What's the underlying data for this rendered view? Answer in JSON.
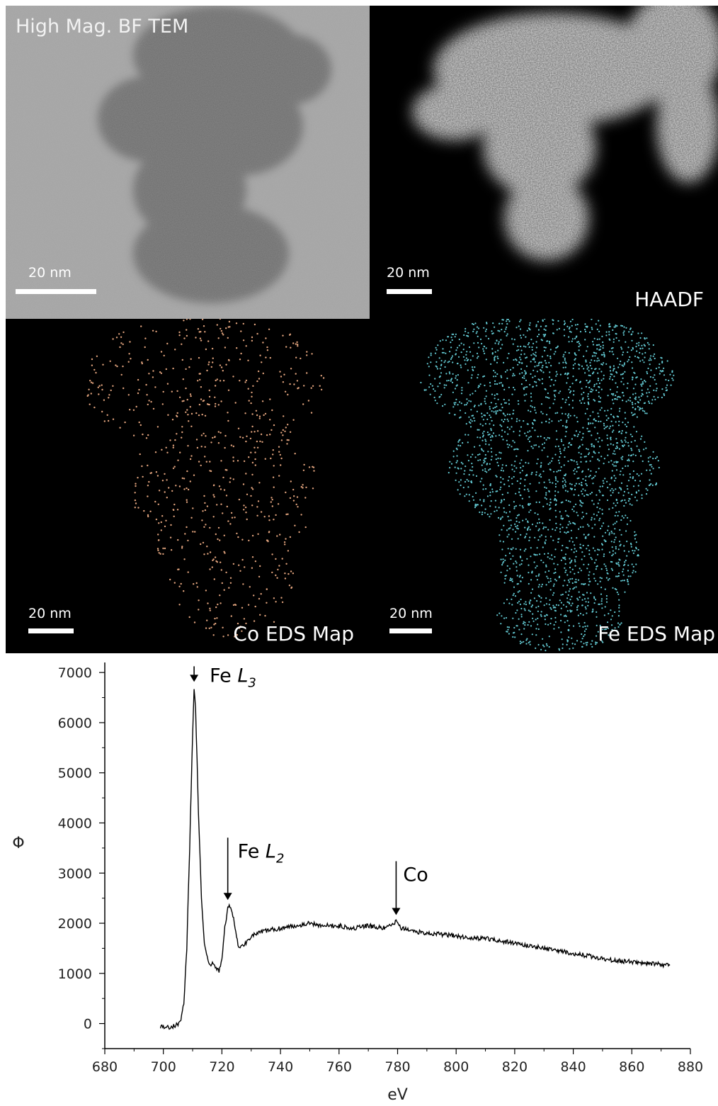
{
  "panels": {
    "bf": {
      "title": "High Mag. BF TEM",
      "scale": "20 nm"
    },
    "haadf": {
      "title": "HAADF",
      "scale": "20 nm"
    },
    "co_map": {
      "title": "Co EDS Map",
      "scale": "20 nm",
      "dot_color": "#e0a27c"
    },
    "fe_map": {
      "title": "Fe EDS Map",
      "scale": "20 nm",
      "dot_color": "#63c9d2"
    }
  },
  "chart_data": {
    "type": "line",
    "xlabel": "eV",
    "ylabel": "Φ",
    "xlim": [
      680,
      880
    ],
    "ylim": [
      -500,
      7200
    ],
    "x_ticks": [
      "680",
      "700",
      "720",
      "740",
      "760",
      "780",
      "800",
      "820",
      "840",
      "860",
      "880"
    ],
    "y_ticks": [
      "0",
      "1000",
      "2000",
      "3000",
      "4000",
      "5000",
      "6000",
      "7000"
    ],
    "series": [
      {
        "points": [
          [
            699,
            -50
          ],
          [
            702,
            -80
          ],
          [
            705,
            -20
          ],
          [
            706,
            100
          ],
          [
            707,
            400
          ],
          [
            708,
            1500
          ],
          [
            709,
            3500
          ],
          [
            710,
            5800
          ],
          [
            710.5,
            6700
          ],
          [
            711,
            6300
          ],
          [
            712,
            4200
          ],
          [
            713,
            2500
          ],
          [
            714,
            1600
          ],
          [
            715,
            1300
          ],
          [
            716,
            1150
          ],
          [
            717,
            1200
          ],
          [
            718,
            1100
          ],
          [
            719,
            1050
          ],
          [
            720,
            1300
          ],
          [
            721,
            1900
          ],
          [
            722,
            2300
          ],
          [
            723,
            2350
          ],
          [
            724,
            2100
          ],
          [
            725,
            1700
          ],
          [
            726,
            1500
          ],
          [
            728,
            1600
          ],
          [
            730,
            1750
          ],
          [
            735,
            1850
          ],
          [
            740,
            1900
          ],
          [
            745,
            1950
          ],
          [
            750,
            2000
          ],
          [
            755,
            1950
          ],
          [
            760,
            1950
          ],
          [
            765,
            1900
          ],
          [
            770,
            1950
          ],
          [
            775,
            1900
          ],
          [
            778,
            1950
          ],
          [
            779.5,
            2050
          ],
          [
            781,
            1900
          ],
          [
            785,
            1850
          ],
          [
            790,
            1800
          ],
          [
            795,
            1780
          ],
          [
            800,
            1750
          ],
          [
            805,
            1700
          ],
          [
            810,
            1700
          ],
          [
            815,
            1650
          ],
          [
            820,
            1600
          ],
          [
            825,
            1550
          ],
          [
            830,
            1500
          ],
          [
            835,
            1450
          ],
          [
            840,
            1400
          ],
          [
            845,
            1350
          ],
          [
            850,
            1300
          ],
          [
            855,
            1250
          ],
          [
            860,
            1230
          ],
          [
            865,
            1200
          ],
          [
            870,
            1180
          ],
          [
            873,
            1160
          ]
        ]
      }
    ],
    "annotations": [
      {
        "label": "Fe ",
        "sub": "3",
        "italic": "L",
        "x": 710.5,
        "y_tip": 6700
      },
      {
        "label": "Fe ",
        "sub": "2",
        "italic": "L",
        "x": 722,
        "y_tip": 2350
      },
      {
        "label": "Co",
        "sub": "",
        "italic": "",
        "x": 779.5,
        "y_tip": 2050
      }
    ]
  }
}
